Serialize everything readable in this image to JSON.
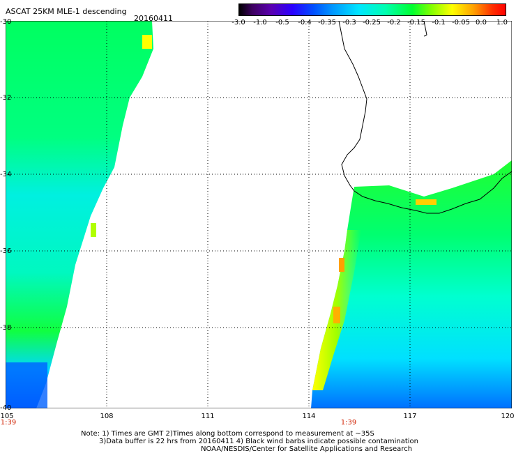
{
  "header": {
    "title": "ASCAT 25KM MLE-1 descending",
    "date": "20160411"
  },
  "colorbar": {
    "ticks": [
      "-3.0",
      "-1.0",
      "-0.5",
      "-0.4",
      "-0.35",
      "-0.3",
      "-0.25",
      "-0.2",
      "-0.15",
      "-0.1",
      "-0.05",
      "0.0",
      "1.0"
    ]
  },
  "axes": {
    "lat_labels": [
      "-30",
      "-32",
      "-34",
      "-36",
      "-38",
      "-40"
    ],
    "lon_labels": [
      "105",
      "108",
      "111",
      "114",
      "117",
      "120"
    ],
    "lon_range": [
      105,
      120
    ],
    "lat_range": [
      -30,
      -40
    ],
    "grid": true
  },
  "pass_times": [
    "1:39",
    "1:39"
  ],
  "notes": {
    "line1": "Note: 1) Times are GMT 2)Times along bottom correspond to measurement at ~35S",
    "line2": "3)Data buffer is 22 hrs from 20160411 4) Black wind barbs indicate possible contamination",
    "line3": "NOAA/NESDIS/Center for Satellite Applications and Research"
  },
  "colors": {
    "swath_main": "#00ff60",
    "swath_low": "#00e6ff",
    "swath_min": "#0064ff",
    "swath_high": "#ffff00"
  }
}
